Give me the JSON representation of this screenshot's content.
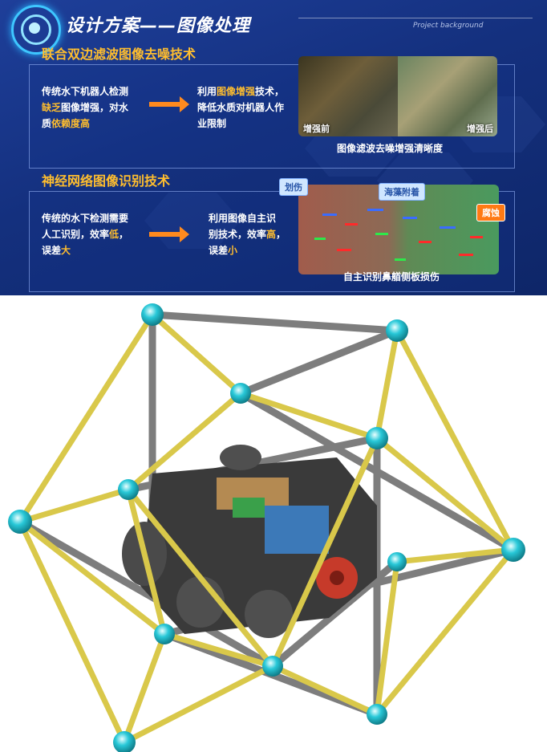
{
  "slide": {
    "title": "设计方案——图像处理",
    "subtitle_en": "Project background",
    "section1": {
      "heading": "联合双边滤波图像去噪技术",
      "left_text": [
        {
          "t": "传统水下机器人检测",
          "hl": false
        },
        {
          "t": "缺乏",
          "hl": true
        },
        {
          "t": "图像增强，对水",
          "hl": false
        },
        {
          "t": "质",
          "hl": false
        },
        {
          "t": "依赖度高",
          "hl": true
        }
      ],
      "right_text": [
        {
          "t": "利用",
          "hl": false
        },
        {
          "t": "图像增强",
          "hl": true
        },
        {
          "t": "技术，",
          "hl": false
        },
        {
          "t": "降低水质对机器人作",
          "hl": false
        },
        {
          "t": "业限制",
          "hl": false
        }
      ],
      "before_label": "增强前",
      "after_label": "增强后",
      "caption": "图像滤波去噪增强清晰度"
    },
    "section2": {
      "heading": "神经网络图像识别技术",
      "left_text": [
        {
          "t": "传统的水下检测需要",
          "hl": false
        },
        {
          "t": "人工识别，效率",
          "hl": false
        },
        {
          "t": "低",
          "hl": true
        },
        {
          "t": "，",
          "hl": false
        },
        {
          "t": "误差",
          "hl": false
        },
        {
          "t": "大",
          "hl": true
        }
      ],
      "right_text": [
        {
          "t": "利用图像自主识",
          "hl": false
        },
        {
          "t": "别技术，效率",
          "hl": false
        },
        {
          "t": "高",
          "hl": true
        },
        {
          "t": "，",
          "hl": false
        },
        {
          "t": "误差",
          "hl": false
        },
        {
          "t": "小",
          "hl": true
        }
      ],
      "callouts": [
        "划伤",
        "海藻附着",
        "腐蚀"
      ],
      "caption": "自主识别鼻艏侧板损伤"
    }
  },
  "colors": {
    "bg_top": "#1e3f9a",
    "highlight": "#ffbe2e",
    "arrow": "#ff8a1e",
    "frame_yellow": "#d9c84a",
    "frame_gray": "#7d7d7d",
    "node_cyan": "#28c8d8",
    "thruster_red": "#c63a2a"
  }
}
